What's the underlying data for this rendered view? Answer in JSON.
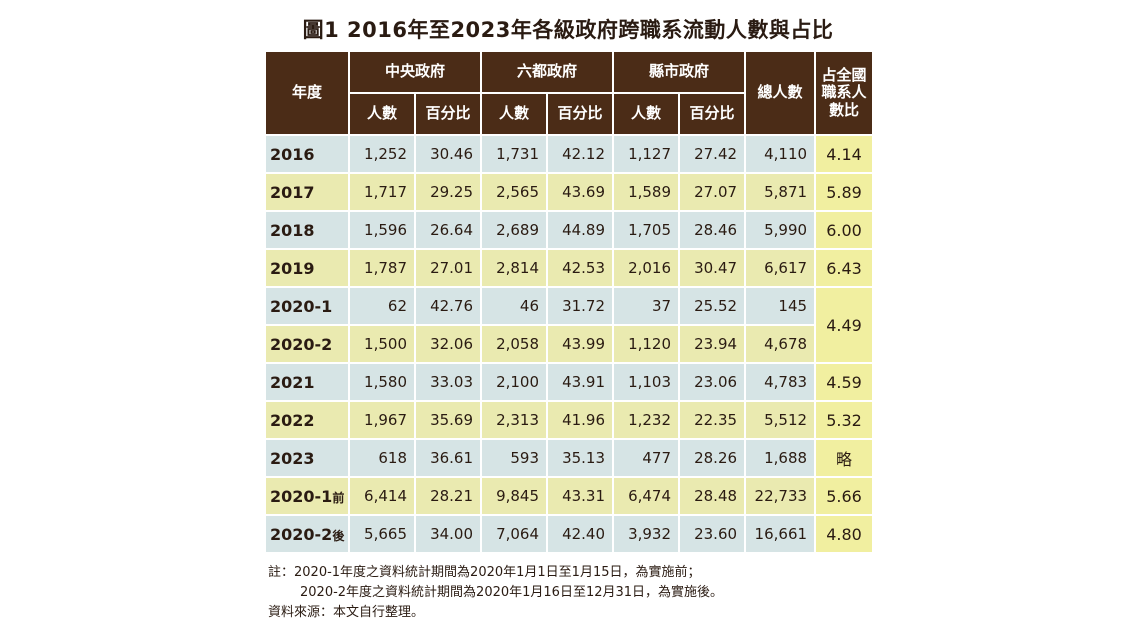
{
  "title": "圖1  2016年至2023年各級政府跨職系流動人數與占比",
  "header": {
    "year": "年度",
    "groups": [
      "中央政府",
      "六都政府",
      "縣市政府"
    ],
    "sub": [
      "人數",
      "百分比"
    ],
    "total": "總人數",
    "ratio": "占全國職系人數比"
  },
  "rows": [
    {
      "year": "2016",
      "c_n": "1,252",
      "c_p": "30.46",
      "s_n": "1,731",
      "s_p": "42.12",
      "x_n": "1,127",
      "x_p": "27.42",
      "total": "4,110",
      "ratio": "4.14"
    },
    {
      "year": "2017",
      "c_n": "1,717",
      "c_p": "29.25",
      "s_n": "2,565",
      "s_p": "43.69",
      "x_n": "1,589",
      "x_p": "27.07",
      "total": "5,871",
      "ratio": "5.89"
    },
    {
      "year": "2018",
      "c_n": "1,596",
      "c_p": "26.64",
      "s_n": "2,689",
      "s_p": "44.89",
      "x_n": "1,705",
      "x_p": "28.46",
      "total": "5,990",
      "ratio": "6.00"
    },
    {
      "year": "2019",
      "c_n": "1,787",
      "c_p": "27.01",
      "s_n": "2,814",
      "s_p": "42.53",
      "x_n": "2,016",
      "x_p": "30.47",
      "total": "6,617",
      "ratio": "6.43"
    },
    {
      "year": "2020-1",
      "c_n": "62",
      "c_p": "42.76",
      "s_n": "46",
      "s_p": "31.72",
      "x_n": "37",
      "x_p": "25.52",
      "total": "145",
      "ratio": "4.49"
    },
    {
      "year": "2020-2",
      "c_n": "1,500",
      "c_p": "32.06",
      "s_n": "2,058",
      "s_p": "43.99",
      "x_n": "1,120",
      "x_p": "23.94",
      "total": "4,678"
    },
    {
      "year": "2021",
      "c_n": "1,580",
      "c_p": "33.03",
      "s_n": "2,100",
      "s_p": "43.91",
      "x_n": "1,103",
      "x_p": "23.06",
      "total": "4,783",
      "ratio": "4.59"
    },
    {
      "year": "2022",
      "c_n": "1,967",
      "c_p": "35.69",
      "s_n": "2,313",
      "s_p": "41.96",
      "x_n": "1,232",
      "x_p": "22.35",
      "total": "5,512",
      "ratio": "5.32"
    },
    {
      "year": "2023",
      "c_n": "618",
      "c_p": "36.61",
      "s_n": "593",
      "s_p": "35.13",
      "x_n": "477",
      "x_p": "28.26",
      "total": "1,688",
      "ratio": "略"
    },
    {
      "year": "2020-1",
      "suffix": "前",
      "c_n": "6,414",
      "c_p": "28.21",
      "s_n": "9,845",
      "s_p": "43.31",
      "x_n": "6,474",
      "x_p": "28.48",
      "total": "22,733",
      "ratio": "5.66"
    },
    {
      "year": "2020-2",
      "suffix": "後",
      "c_n": "5,665",
      "c_p": "34.00",
      "s_n": "7,064",
      "s_p": "42.40",
      "x_n": "3,932",
      "x_p": "23.60",
      "total": "16,661",
      "ratio": "4.80"
    }
  ],
  "notes": {
    "line1": "註：2020-1年度之資料統計期間為2020年1月1日至1月15日，為實施前；",
    "line2": "2020-2年度之資料統計期間為2020年1月16日至12月31日，為實施後。",
    "line3": "資料來源：本文自行整理。"
  }
}
